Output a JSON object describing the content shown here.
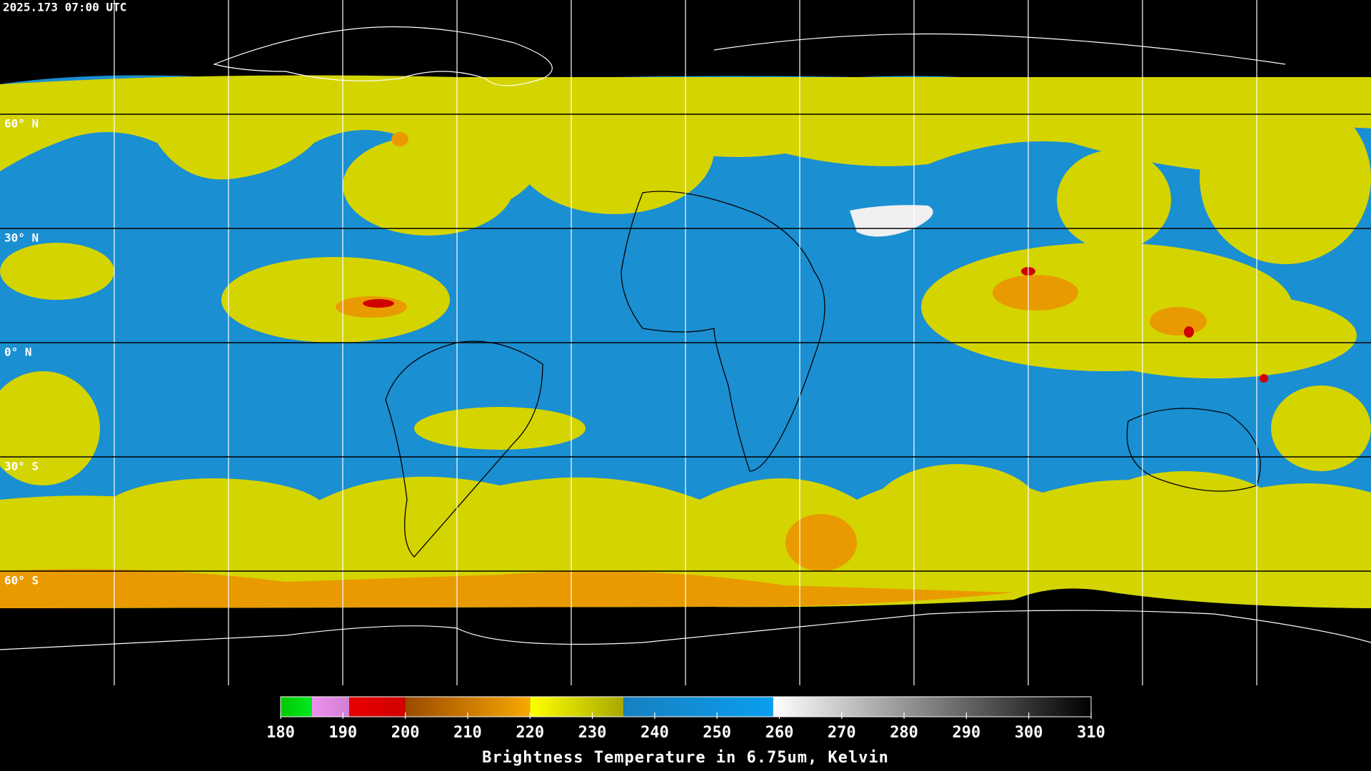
{
  "title": "2025.173 07:00 UTC",
  "map": {
    "lon_range": [
      -180,
      180
    ],
    "lat_range": [
      -90,
      90
    ],
    "lon_grid": [
      -150,
      -120,
      -90,
      -60,
      -30,
      0,
      30,
      60,
      90,
      120,
      150
    ],
    "lat_grid": [
      {
        "value": 60,
        "label": "60° N"
      },
      {
        "value": 30,
        "label": "30° N"
      },
      {
        "value": 0,
        "label": "0° N"
      },
      {
        "value": -30,
        "label": "30° S"
      },
      {
        "value": -60,
        "label": "60° S"
      }
    ]
  },
  "colorbar": {
    "label": "Brightness Temperature in 6.75um, Kelvin",
    "range": [
      180,
      310
    ],
    "ticks": [
      180,
      190,
      200,
      210,
      220,
      230,
      240,
      250,
      260,
      270,
      280,
      290,
      300,
      310
    ],
    "stops": [
      {
        "from": 180,
        "to": 185,
        "colors": [
          "#00c800",
          "#00e820"
        ]
      },
      {
        "from": 185,
        "to": 191,
        "colors": [
          "#f090f0",
          "#d080d0"
        ]
      },
      {
        "from": 191,
        "to": 200,
        "colors": [
          "#e80000",
          "#d00000"
        ]
      },
      {
        "from": 200,
        "to": 220,
        "colors": [
          "#9a4a00",
          "#f8a800"
        ]
      },
      {
        "from": 220,
        "to": 235,
        "colors": [
          "#ffff00",
          "#a8a800"
        ]
      },
      {
        "from": 235,
        "to": 259,
        "colors": [
          "#1880c0",
          "#0a9ef0"
        ]
      },
      {
        "from": 259,
        "to": 310,
        "colors": [
          "#ffffff",
          "#000000"
        ]
      }
    ]
  }
}
